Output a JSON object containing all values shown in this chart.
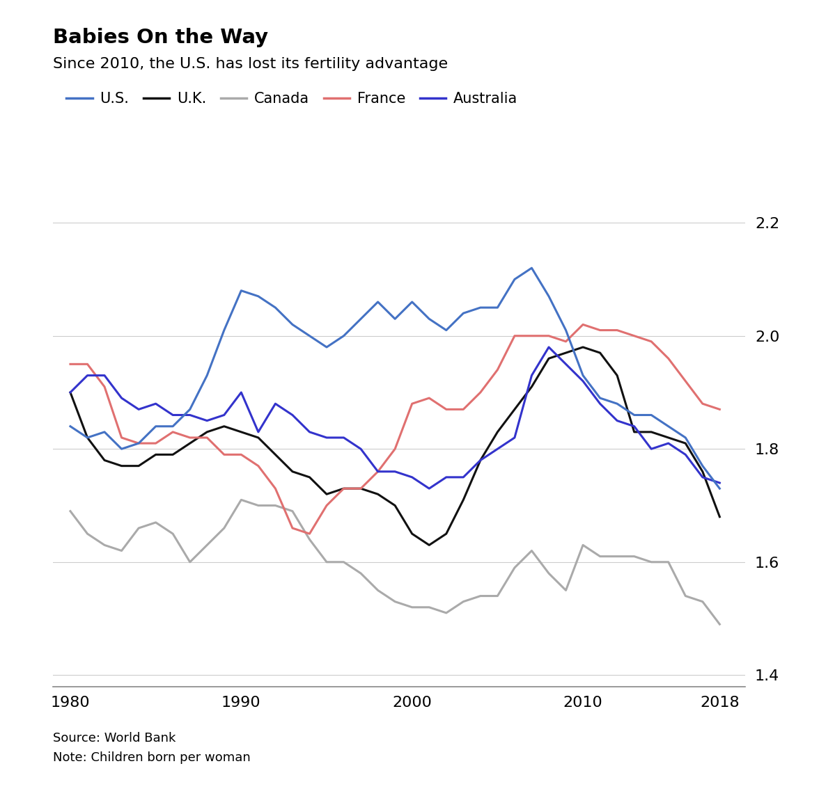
{
  "title": "Babies On the Way",
  "subtitle": "Since 2010, the U.S. has lost its fertility advantage",
  "source": "Source: World Bank",
  "note": "Note: Children born per woman",
  "legend_labels": [
    "U.S.",
    "U.K.",
    "Canada",
    "France",
    "Australia"
  ],
  "colors": {
    "US": "#4472C4",
    "UK": "#111111",
    "Canada": "#aaaaaa",
    "France": "#E07070",
    "Australia": "#3333CC"
  },
  "years": [
    1980,
    1981,
    1982,
    1983,
    1984,
    1985,
    1986,
    1987,
    1988,
    1989,
    1990,
    1991,
    1992,
    1993,
    1994,
    1995,
    1996,
    1997,
    1998,
    1999,
    2000,
    2001,
    2002,
    2003,
    2004,
    2005,
    2006,
    2007,
    2008,
    2009,
    2010,
    2011,
    2012,
    2013,
    2014,
    2015,
    2016,
    2017,
    2018
  ],
  "US": [
    1.84,
    1.82,
    1.83,
    1.8,
    1.81,
    1.84,
    1.84,
    1.87,
    1.93,
    2.01,
    2.08,
    2.07,
    2.05,
    2.02,
    2.0,
    1.98,
    2.0,
    2.03,
    2.06,
    2.03,
    2.06,
    2.03,
    2.01,
    2.04,
    2.05,
    2.05,
    2.1,
    2.12,
    2.07,
    2.01,
    1.93,
    1.89,
    1.88,
    1.86,
    1.86,
    1.84,
    1.82,
    1.77,
    1.73
  ],
  "UK": [
    1.9,
    1.82,
    1.78,
    1.77,
    1.77,
    1.79,
    1.79,
    1.81,
    1.83,
    1.84,
    1.83,
    1.82,
    1.79,
    1.76,
    1.75,
    1.72,
    1.73,
    1.73,
    1.72,
    1.7,
    1.65,
    1.63,
    1.65,
    1.71,
    1.78,
    1.83,
    1.87,
    1.91,
    1.96,
    1.97,
    1.98,
    1.97,
    1.93,
    1.83,
    1.83,
    1.82,
    1.81,
    1.76,
    1.68
  ],
  "Canada": [
    1.69,
    1.65,
    1.63,
    1.62,
    1.66,
    1.67,
    1.65,
    1.6,
    1.63,
    1.66,
    1.71,
    1.7,
    1.7,
    1.69,
    1.64,
    1.6,
    1.6,
    1.58,
    1.55,
    1.53,
    1.52,
    1.52,
    1.51,
    1.53,
    1.54,
    1.54,
    1.59,
    1.62,
    1.58,
    1.55,
    1.63,
    1.61,
    1.61,
    1.61,
    1.6,
    1.6,
    1.54,
    1.53,
    1.49
  ],
  "France": [
    1.95,
    1.95,
    1.91,
    1.82,
    1.81,
    1.81,
    1.83,
    1.82,
    1.82,
    1.79,
    1.79,
    1.77,
    1.73,
    1.66,
    1.65,
    1.7,
    1.73,
    1.73,
    1.76,
    1.8,
    1.88,
    1.89,
    1.87,
    1.87,
    1.9,
    1.94,
    2.0,
    2.0,
    2.0,
    1.99,
    2.02,
    2.01,
    2.01,
    2.0,
    1.99,
    1.96,
    1.92,
    1.88,
    1.87
  ],
  "Australia": [
    1.9,
    1.93,
    1.93,
    1.89,
    1.87,
    1.88,
    1.86,
    1.86,
    1.85,
    1.86,
    1.9,
    1.83,
    1.88,
    1.86,
    1.83,
    1.82,
    1.82,
    1.8,
    1.76,
    1.76,
    1.75,
    1.73,
    1.75,
    1.75,
    1.78,
    1.8,
    1.82,
    1.93,
    1.98,
    1.95,
    1.92,
    1.88,
    1.85,
    1.84,
    1.8,
    1.81,
    1.79,
    1.75,
    1.74
  ],
  "ylim": [
    1.38,
    2.28
  ],
  "yticks": [
    1.4,
    1.6,
    1.8,
    2.0,
    2.2
  ],
  "xlim": [
    1979,
    2019.5
  ],
  "xticks": [
    1980,
    1990,
    2000,
    2010,
    2018
  ],
  "background_color": "#ffffff",
  "grid_color": "#cccccc",
  "line_width": 2.2,
  "title_fontsize": 21,
  "subtitle_fontsize": 16,
  "tick_fontsize": 16,
  "legend_fontsize": 15,
  "source_fontsize": 13
}
